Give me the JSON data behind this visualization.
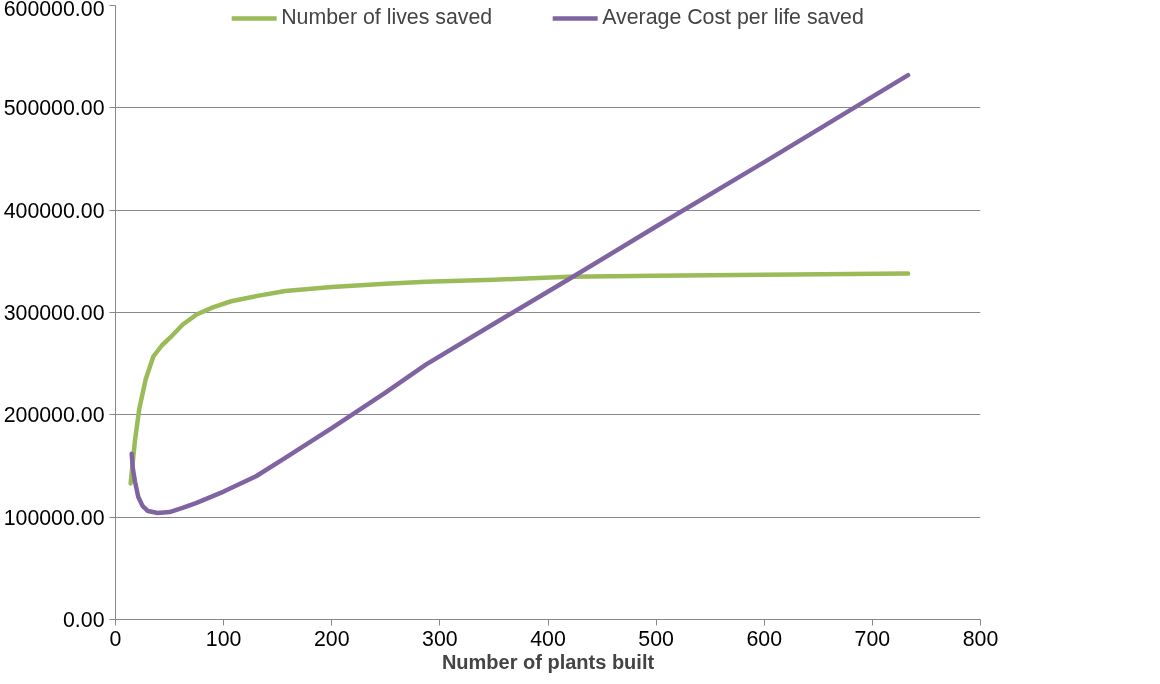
{
  "chart_data": {
    "type": "line",
    "xlabel": "Number of plants built",
    "xlim": [
      0,
      800
    ],
    "xticks": [
      0,
      100,
      200,
      300,
      400,
      500,
      600,
      700,
      800
    ],
    "ylim": [
      0,
      600000
    ],
    "yticks": [
      {
        "value": 0,
        "label": "0.00"
      },
      {
        "value": 100000,
        "label": "100000.00"
      },
      {
        "value": 200000,
        "label": "200000.00"
      },
      {
        "value": 300000,
        "label": "300000.00"
      },
      {
        "value": 400000,
        "label": "400000.00"
      },
      {
        "value": 500000,
        "label": "500000.00"
      },
      {
        "value": 600000,
        "label": "600000.00"
      }
    ],
    "grid": "y",
    "legend": "top",
    "marker": "none",
    "line_style": "solid",
    "series": [
      {
        "name": "Number of lives saved",
        "color": "#9bbb59",
        "x": [
          14,
          18,
          22,
          28,
          35,
          43,
          52,
          62,
          75,
          90,
          107,
          130,
          157,
          200,
          250,
          287,
          350,
          420,
          500,
          600,
          733
        ],
        "values": [
          133000,
          175000,
          206000,
          235000,
          257000,
          268000,
          277000,
          288000,
          298000,
          305000,
          311000,
          316000,
          321000,
          325000,
          328000,
          330000,
          332000,
          335000,
          336000,
          337000,
          338000
        ]
      },
      {
        "name": "Average Cost per life saved",
        "color": "#8064a2",
        "x": [
          15,
          16,
          18,
          21,
          25,
          30,
          39,
          50,
          62,
          75,
          100,
          130,
          157,
          200,
          250,
          287,
          350,
          420,
          500,
          600,
          733
        ],
        "values": [
          162000,
          148000,
          135000,
          120000,
          111000,
          106000,
          104000,
          105000,
          109000,
          114000,
          125000,
          140000,
          158000,
          187000,
          222000,
          249000,
          289000,
          333000,
          384000,
          447000,
          532000
        ]
      }
    ]
  }
}
